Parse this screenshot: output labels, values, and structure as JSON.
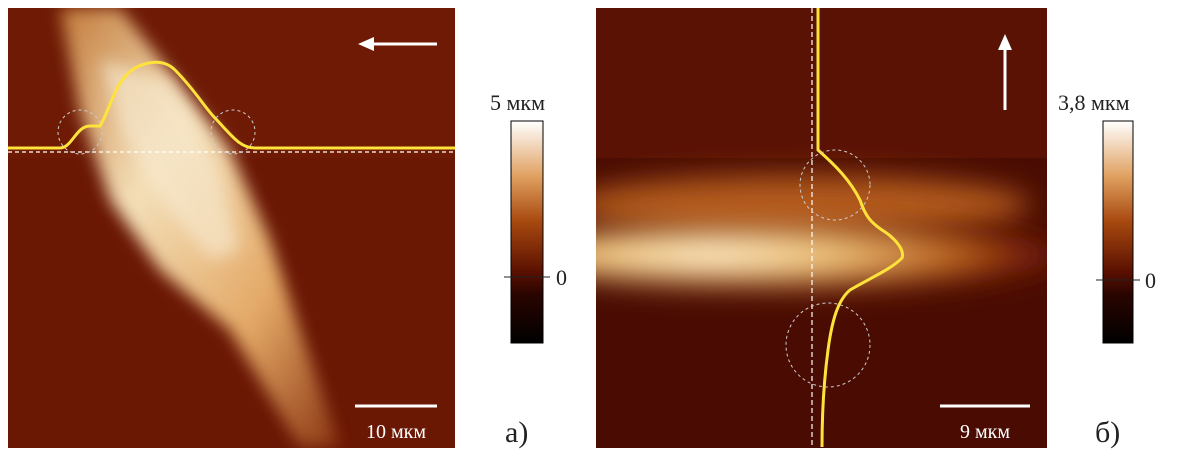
{
  "panels": [
    {
      "colorbar_max_label": "5 мкм",
      "colorbar_zero_label": "0",
      "scale_bar_label": "10 мкм",
      "panel_label": "а)"
    },
    {
      "colorbar_max_label": "3,8 мкм",
      "colorbar_zero_label": "0",
      "scale_bar_label": "9 мкм",
      "panel_label": "б)"
    }
  ]
}
